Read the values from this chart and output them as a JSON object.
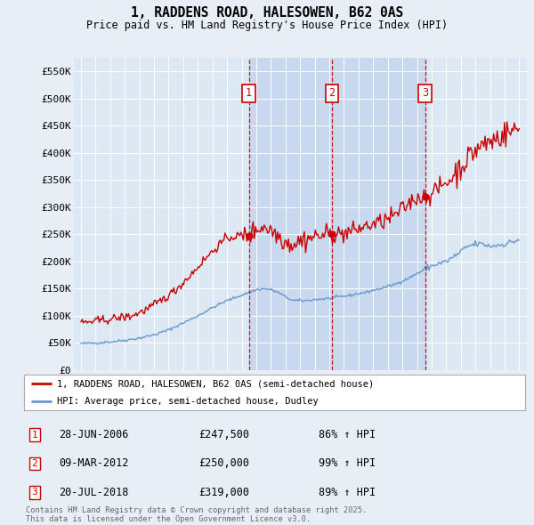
{
  "title": "1, RADDENS ROAD, HALESOWEN, B62 0AS",
  "subtitle": "Price paid vs. HM Land Registry's House Price Index (HPI)",
  "bg_color": "#e8eef5",
  "plot_bg_color": "#dce8f4",
  "highlight_color": "#c8d8ee",
  "legend_label_red": "1, RADDENS ROAD, HALESOWEN, B62 0AS (semi-detached house)",
  "legend_label_blue": "HPI: Average price, semi-detached house, Dudley",
  "footer": "Contains HM Land Registry data © Crown copyright and database right 2025.\nThis data is licensed under the Open Government Licence v3.0.",
  "sales": [
    {
      "num": 1,
      "date": "28-JUN-2006",
      "price": 247500,
      "hpi_pct": "86% ↑ HPI",
      "x_year": 2006.49
    },
    {
      "num": 2,
      "date": "09-MAR-2012",
      "price": 250000,
      "hpi_pct": "99% ↑ HPI",
      "x_year": 2012.19
    },
    {
      "num": 3,
      "date": "20-JUL-2018",
      "price": 319000,
      "hpi_pct": "89% ↑ HPI",
      "x_year": 2018.55
    }
  ],
  "ylim": [
    0,
    575000
  ],
  "yticks": [
    0,
    50000,
    100000,
    150000,
    200000,
    250000,
    300000,
    350000,
    400000,
    450000,
    500000,
    550000
  ],
  "ytick_labels": [
    "£0",
    "£50K",
    "£100K",
    "£150K",
    "£200K",
    "£250K",
    "£300K",
    "£350K",
    "£400K",
    "£450K",
    "£500K",
    "£550K"
  ],
  "xlim": [
    1994.5,
    2025.5
  ],
  "xticks": [
    1995,
    1996,
    1997,
    1998,
    1999,
    2000,
    2001,
    2002,
    2003,
    2004,
    2005,
    2006,
    2007,
    2008,
    2009,
    2010,
    2011,
    2012,
    2013,
    2014,
    2015,
    2016,
    2017,
    2018,
    2019,
    2020,
    2021,
    2022,
    2023,
    2024,
    2025
  ],
  "red_line_color": "#cc0000",
  "blue_line_color": "#6699cc",
  "dashed_line_color": "#cc0000",
  "marker_box_color": "#cc0000"
}
